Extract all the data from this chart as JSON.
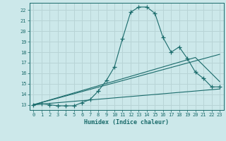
{
  "xlabel": "Humidex (Indice chaleur)",
  "bg_color": "#cce8ea",
  "grid_color": "#b8d4d6",
  "line_color": "#1a6b6b",
  "xlim": [
    -0.5,
    23.5
  ],
  "ylim": [
    12.5,
    22.7
  ],
  "xticks": [
    0,
    1,
    2,
    3,
    4,
    5,
    6,
    7,
    8,
    9,
    10,
    11,
    12,
    13,
    14,
    15,
    16,
    17,
    18,
    19,
    20,
    21,
    22,
    23
  ],
  "yticks": [
    13,
    14,
    15,
    16,
    17,
    18,
    19,
    20,
    21,
    22
  ],
  "curve1_x": [
    0,
    1,
    2,
    3,
    4,
    5,
    6,
    7,
    8,
    9,
    10,
    11,
    12,
    13,
    14,
    15,
    16,
    17,
    18,
    19,
    20,
    21,
    22,
    23
  ],
  "curve1_y": [
    13.0,
    13.1,
    13.0,
    12.9,
    12.9,
    12.9,
    13.2,
    13.5,
    14.3,
    15.3,
    16.6,
    19.3,
    21.8,
    22.3,
    22.3,
    21.7,
    19.4,
    18.0,
    18.5,
    17.4,
    16.1,
    15.5,
    14.7,
    14.7
  ],
  "curve2_x": [
    0,
    23
  ],
  "curve2_y": [
    13.0,
    14.5
  ],
  "curve3_x": [
    0,
    23
  ],
  "curve3_y": [
    13.0,
    17.8
  ],
  "curve4_x": [
    0,
    20,
    23
  ],
  "curve4_y": [
    13.0,
    17.5,
    15.2
  ]
}
